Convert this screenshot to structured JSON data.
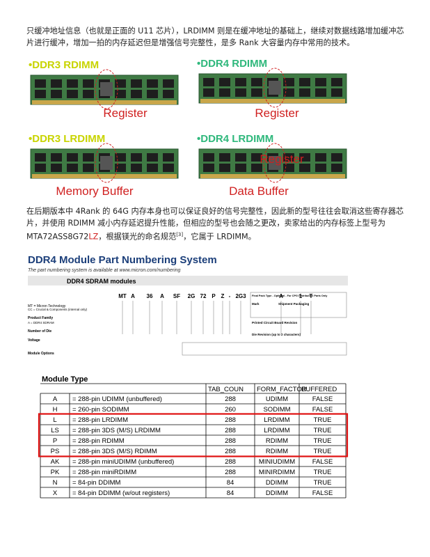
{
  "paragraph_1": "只缓冲地址信息（也就是正面的 U11 芯片），LRDIMM 则是在缓冲地址的基础上，继续对数据线路增加缓冲芯片进行缓冲，增加一拍的内存延迟但是增强信号完整性，是多 Rank 大容量内存中常用的技术。",
  "module_photos": [
    {
      "title": "•DDR3 RDIMM",
      "labels": [
        "Register"
      ]
    },
    {
      "title": "•DDR4 RDIMM",
      "labels": [
        "Register"
      ]
    },
    {
      "title": "•DDR3 LRDIMM",
      "labels": [
        "Memory Buffer"
      ]
    },
    {
      "title": "•DDR4 LRDIMM",
      "labels": [
        "Register",
        "Data Buffer"
      ]
    }
  ],
  "paragraph_2": {
    "parts": [
      "在后期版本中 4Rank 的 64G 内存本身也可以保证良好的信号完整性，因此新的型号往往会取消这些寄存器芯片，并使用 RDIMM 减小内存延迟提升性能，但相应的型号也会随之更改，卖家给出的内存标签上型号为 MTA72ASS8G72",
      "LZ",
      "，根据镁光的命名规范",
      "[3]",
      "，它属于 LRDIMM。"
    ]
  },
  "numbering_figure": {
    "title": "DDR4 Module Part Numbering System",
    "subtitle": "The part numbering system is available at www.micron.com/numbering",
    "band": "DDR4 SDRAM modules",
    "code_parts": [
      "MT",
      "A",
      "36",
      "A",
      "SF",
      "2G",
      "72",
      "P",
      "Z",
      "-",
      "2G3",
      "A",
      "1",
      "T"
    ],
    "left_labels": [
      "MT = Micron Technology",
      "CC = Crucial & Components (internal only)",
      "Product Family",
      "A = DDR4 SDRAM",
      "Number of Die",
      "Voltage",
      "Module Options"
    ],
    "right_labels": [
      "Final Pack Type - Optional - For CPG Distribution Parts Only",
      "Mark",
      "Shipment Packaging",
      "Printed Circuit Board Revision",
      "Die Revision (up to 2 characters)"
    ]
  },
  "table": {
    "title": "Module Type",
    "columns": [
      "TAB_COUN",
      "FORM_FACTOR",
      "BUFFERED"
    ],
    "rows": [
      [
        "A",
        "= 288-pin UDIMM (unbuffered)",
        288,
        "UDIMM",
        "FALSE"
      ],
      [
        "H",
        "= 260-pin SODIMM",
        260,
        "SODIMM",
        "FALSE"
      ],
      [
        "L",
        "= 288-pin LRDIMM",
        288,
        "LRDIMM",
        "TRUE"
      ],
      [
        "LS",
        "= 288-pin 3DS (M/S) LRDIMM",
        288,
        "LRDIMM",
        "TRUE"
      ],
      [
        "P",
        "= 288-pin RDIMM",
        288,
        "RDIMM",
        "TRUE"
      ],
      [
        "PS",
        "= 288-pin 3DS (M/S) RDIMM",
        288,
        "RDIMM",
        "TRUE"
      ],
      [
        "AK",
        "= 288-pin  miniUDIMM (unbuffered)",
        288,
        "MINIUDIMM",
        "FALSE"
      ],
      [
        "PK",
        "= 288-pin miniRDIMM",
        288,
        "MINIRDIMM",
        "TRUE"
      ],
      [
        "N",
        "= 84-pin DDIMM",
        84,
        "DDIMM",
        "TRUE"
      ],
      [
        "X",
        "= 84-pin DDIMM (w/out registers)",
        84,
        "DDIMM",
        "FALSE"
      ]
    ]
  }
}
